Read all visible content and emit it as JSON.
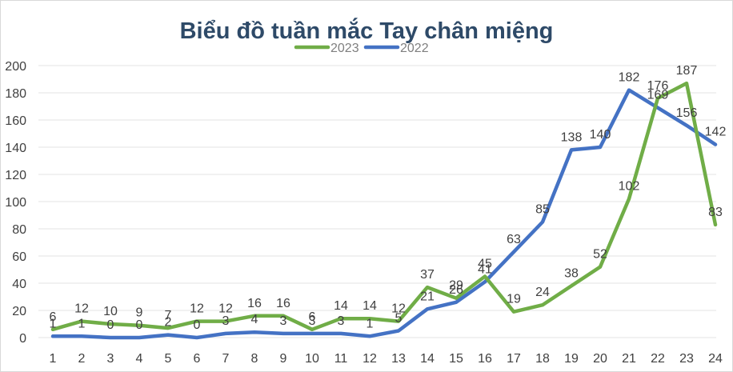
{
  "chart_data": {
    "type": "line",
    "title": "Biểu đồ tuần mắc Tay chân miệng",
    "xlabel": "",
    "ylabel": "",
    "ylim": [
      0,
      200
    ],
    "yticks": [
      0,
      20,
      40,
      60,
      80,
      100,
      120,
      140,
      160,
      180,
      200
    ],
    "categories": [
      "1",
      "2",
      "3",
      "4",
      "5",
      "6",
      "7",
      "8",
      "9",
      "10",
      "11",
      "12",
      "13",
      "14",
      "15",
      "16",
      "17",
      "18",
      "19",
      "20",
      "21",
      "22",
      "23",
      "24"
    ],
    "grid": true,
    "legend_position": "top-center",
    "series": [
      {
        "name": "2023",
        "color": "#70ad47",
        "values": [
          6,
          12,
          10,
          9,
          7,
          12,
          12,
          16,
          16,
          6,
          14,
          14,
          12,
          37,
          29,
          45,
          19,
          24,
          38,
          52,
          102,
          176,
          187,
          83
        ],
        "labels": [
          "6",
          "12",
          "10",
          "9",
          "7",
          "12",
          "12",
          "16",
          "16",
          "6",
          "14",
          "14",
          "12",
          "37",
          "29",
          "45",
          "19",
          "24",
          "38",
          "52",
          "102",
          "176",
          "187",
          "83"
        ]
      },
      {
        "name": "2022",
        "color": "#4472c4",
        "values": [
          1,
          1,
          0,
          0,
          2,
          0,
          3,
          4,
          3,
          3,
          3,
          1,
          5,
          21,
          26,
          41,
          63,
          85,
          138,
          140,
          182,
          169,
          156,
          142
        ],
        "labels": [
          "1",
          "1",
          "0",
          "0",
          "2",
          "0",
          "3",
          "4",
          "3",
          "3",
          "3",
          "1",
          "5",
          "21",
          "26",
          "41",
          "63",
          "85",
          "138",
          "140",
          "182",
          "169",
          "156",
          "142"
        ]
      }
    ]
  }
}
